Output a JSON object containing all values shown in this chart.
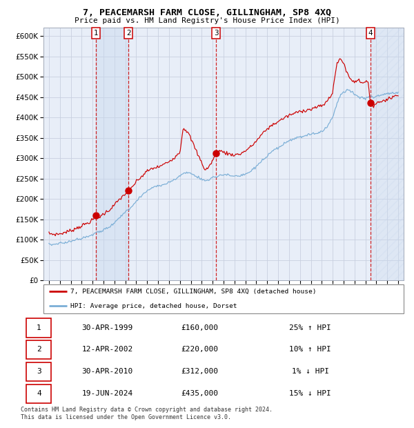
{
  "title": "7, PEACEMARSH FARM CLOSE, GILLINGHAM, SP8 4XQ",
  "subtitle": "Price paid vs. HM Land Registry's House Price Index (HPI)",
  "legend_line1": "7, PEACEMARSH FARM CLOSE, GILLINGHAM, SP8 4XQ (detached house)",
  "legend_line2": "HPI: Average price, detached house, Dorset",
  "footnote1": "Contains HM Land Registry data © Crown copyright and database right 2024.",
  "footnote2": "This data is licensed under the Open Government Licence v3.0.",
  "table": [
    {
      "num": "1",
      "date": "30-APR-1999",
      "price": "£160,000",
      "hpi": "25% ↑ HPI"
    },
    {
      "num": "2",
      "date": "12-APR-2002",
      "price": "£220,000",
      "hpi": "10% ↑ HPI"
    },
    {
      "num": "3",
      "date": "30-APR-2010",
      "price": "£312,000",
      "hpi": "1% ↓ HPI"
    },
    {
      "num": "4",
      "date": "19-JUN-2024",
      "price": "£435,000",
      "hpi": "15% ↓ HPI"
    }
  ],
  "sale_dates_year": [
    1999.33,
    2002.28,
    2010.33,
    2024.46
  ],
  "sale_prices": [
    160000,
    220000,
    312000,
    435000
  ],
  "red_line_color": "#cc0000",
  "blue_line_color": "#7aaed6",
  "background_color": "#e8eef8",
  "grid_color": "#c8d0e0",
  "ylim": [
    0,
    620000
  ],
  "xlim_start": 1994.5,
  "xlim_end": 2027.5,
  "yticks": [
    0,
    50000,
    100000,
    150000,
    200000,
    250000,
    300000,
    350000,
    400000,
    450000,
    500000,
    550000,
    600000
  ]
}
